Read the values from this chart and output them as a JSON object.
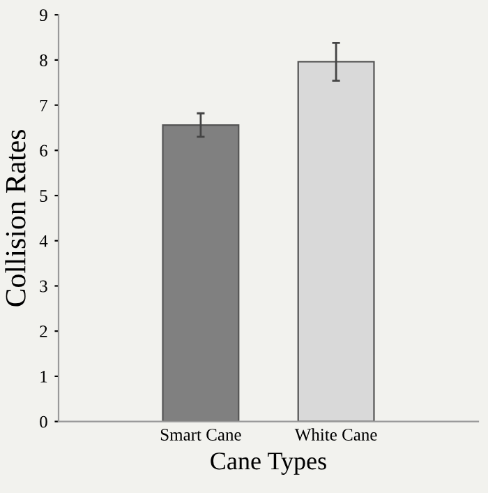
{
  "chart_data": {
    "type": "bar",
    "xlabel": "Cane Types",
    "ylabel": "Collision Rates",
    "categories": [
      "Smart Cane",
      "White Cane"
    ],
    "values": [
      6.56,
      7.96
    ],
    "colors": [
      "#808080",
      "#d9d9d9"
    ],
    "errors": [
      0.26,
      0.42
    ],
    "ylim": [
      0,
      9
    ],
    "yticks": [
      0,
      1,
      2,
      3,
      4,
      5,
      6,
      7,
      8,
      9
    ],
    "grid": false,
    "legend": false
  }
}
